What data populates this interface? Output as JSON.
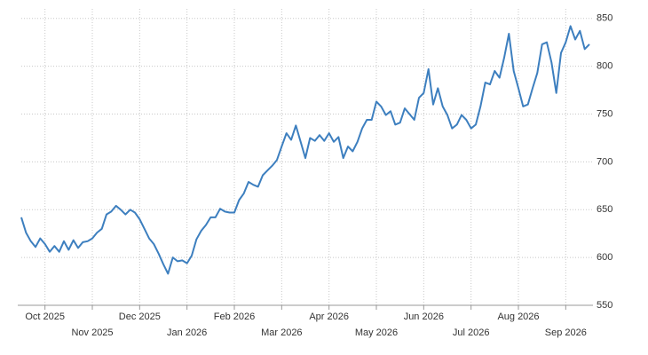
{
  "chart_data": {
    "type": "line",
    "categories": [
      null,
      null,
      null,
      null,
      null,
      "Oct 2025",
      null,
      null,
      null,
      null,
      null,
      null,
      null,
      null,
      null,
      "Nov 2025",
      null,
      null,
      null,
      null,
      null,
      null,
      null,
      null,
      null,
      "Dec 2025",
      null,
      null,
      null,
      null,
      null,
      null,
      null,
      null,
      null,
      "Jan 2026",
      null,
      null,
      null,
      null,
      null,
      null,
      null,
      null,
      null,
      "Feb 2026",
      null,
      null,
      null,
      null,
      null,
      null,
      null,
      null,
      null,
      "Mar 2026",
      null,
      null,
      null,
      null,
      null,
      null,
      null,
      null,
      null,
      "Apr 2026",
      null,
      null,
      null,
      null,
      null,
      null,
      null,
      null,
      null,
      "May 2026",
      null,
      null,
      null,
      null,
      null,
      null,
      null,
      null,
      null,
      "Jun 2026",
      null,
      null,
      null,
      null,
      null,
      null,
      null,
      null,
      null,
      "Jul 2026",
      null,
      null,
      null,
      null,
      null,
      null,
      null,
      null,
      null,
      "Aug 2026",
      null,
      null,
      null,
      null,
      null,
      null,
      null,
      null,
      null,
      "Sep 2026",
      null,
      null,
      null,
      null,
      null
    ],
    "series": [
      {
        "color": "#3d7fbf",
        "values": [
          642,
          626,
          617,
          611,
          620,
          614,
          606,
          612,
          606,
          617,
          608,
          618,
          610,
          616,
          617,
          620,
          626,
          630,
          645,
          648,
          654,
          650,
          645,
          650,
          647,
          640,
          630,
          620,
          614,
          604,
          593,
          583,
          600,
          596,
          597,
          594,
          602,
          619,
          628,
          634,
          642,
          642,
          651,
          648,
          647,
          647,
          660,
          667,
          679,
          676,
          674,
          686,
          691,
          696,
          702,
          716,
          730,
          723,
          738,
          721,
          704,
          725,
          722,
          728,
          722,
          730,
          721,
          726,
          704,
          716,
          711,
          721,
          735,
          744,
          744,
          763,
          758,
          749,
          753,
          739,
          741,
          756,
          750,
          744,
          767,
          772,
          797,
          760,
          777,
          758,
          749,
          735,
          739,
          749,
          744,
          735,
          739,
          758,
          783,
          781,
          795,
          788,
          809,
          834,
          795,
          777,
          758,
          760,
          777,
          793,
          823,
          825,
          804,
          772,
          814,
          825,
          842,
          828,
          837,
          818,
          823
        ]
      }
    ],
    "ylim": [
      550,
      860
    ],
    "yticks": [
      550,
      600,
      650,
      700,
      750,
      800,
      850
    ],
    "grid": true
  }
}
